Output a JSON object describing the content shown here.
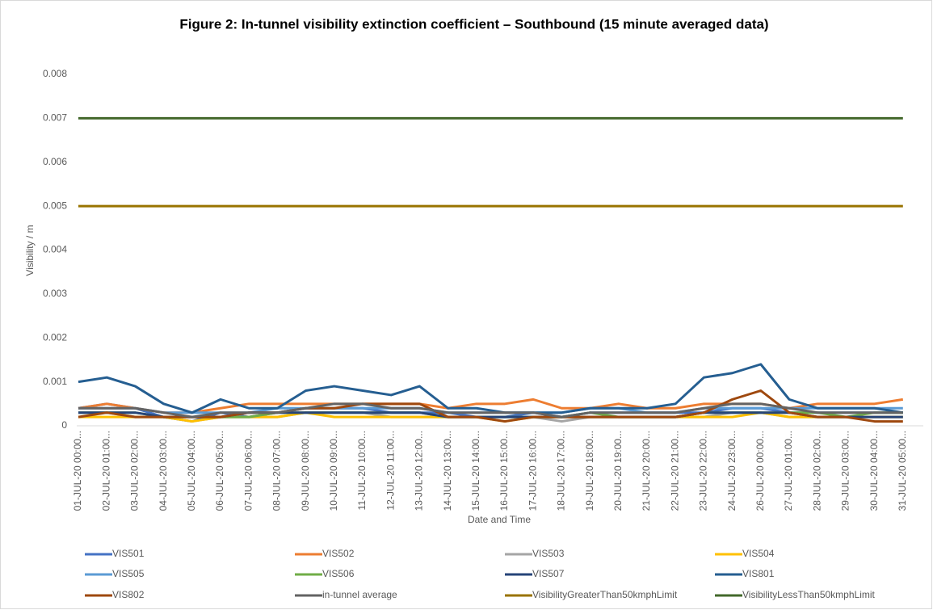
{
  "chart_data": {
    "type": "line",
    "title": "Figure 2: In-tunnel visibility extinction coefficient – Southbound (15 minute averaged data)",
    "x_label": "Date and Time",
    "y_label": "Visibility / m",
    "categories": [
      "01-JUL-20 00:00...",
      "02-JUL-20 01:00...",
      "03-JUL-20 02:00...",
      "04-JUL-20 03:00...",
      "05-JUL-20 04:00...",
      "06-JUL-20 05:00...",
      "07-JUL-20 06:00...",
      "08-JUL-20 07:00...",
      "09-JUL-20 08:00...",
      "10-JUL-20 09:00...",
      "11-JUL-20 10:00...",
      "12-JUL-20 11:00...",
      "13-JUL-20 12:00...",
      "14-JUL-20 13:00...",
      "15-JUL-20 14:00...",
      "16-JUL-20 15:00...",
      "17-JUL-20 16:00...",
      "18-JUL-20 17:00...",
      "19-JUL-20 18:00...",
      "20-JUL-20 19:00...",
      "21-JUL-20 20:00...",
      "22-JUL-20 21:00...",
      "23-JUL-20 22:00...",
      "24-JUL-20 23:00...",
      "26-JUL-20 00:00...",
      "27-JUL-20 01:00...",
      "28-JUL-20 02:00...",
      "29-JUL-20 03:00...",
      "30-JUL-20 04:00...",
      "31-JUL-20 05:00..."
    ],
    "ylim": [
      0,
      0.008
    ],
    "yticks": [
      0,
      0.001,
      0.002,
      0.003,
      0.004,
      0.005,
      0.006,
      0.007,
      0.008
    ],
    "series": [
      {
        "name": "VIS501",
        "color": "#4472c4",
        "values": [
          0.0004,
          0.0005,
          0.0004,
          0.0002,
          0.0001,
          0.0003,
          0.0002,
          0.0003,
          0.0004,
          0.0004,
          0.0004,
          0.0003,
          0.0003,
          0.0003,
          0.0002,
          0.0002,
          0.0003,
          0.0002,
          0.0003,
          0.0003,
          0.0003,
          0.0003,
          0.0003,
          0.0004,
          0.0004,
          0.0003,
          0.0003,
          0.0003,
          0.0003,
          0.0003
        ]
      },
      {
        "name": "VIS502",
        "color": "#ed7d31",
        "values": [
          0.0004,
          0.0005,
          0.0004,
          0.0003,
          0.0003,
          0.0004,
          0.0005,
          0.0005,
          0.0005,
          0.0005,
          0.0005,
          0.0005,
          0.0005,
          0.0004,
          0.0005,
          0.0005,
          0.0006,
          0.0004,
          0.0004,
          0.0005,
          0.0004,
          0.0004,
          0.0005,
          0.0005,
          0.0005,
          0.0004,
          0.0005,
          0.0005,
          0.0005,
          0.0006
        ]
      },
      {
        "name": "VIS503",
        "color": "#a5a5a5",
        "values": [
          0.0003,
          0.0003,
          0.0002,
          0.0002,
          0.0001,
          0.0002,
          0.0002,
          0.0002,
          0.0003,
          0.0003,
          0.0003,
          0.0002,
          0.0002,
          0.0002,
          0.0002,
          0.0002,
          0.0002,
          0.0001,
          0.0002,
          0.0002,
          0.0002,
          0.0002,
          0.0002,
          0.0003,
          0.0003,
          0.0002,
          0.0002,
          0.0002,
          0.0002,
          0.0002
        ]
      },
      {
        "name": "VIS504",
        "color": "#ffc000",
        "values": [
          0.0002,
          0.0002,
          0.0002,
          0.0002,
          0.0001,
          0.0002,
          0.0002,
          0.0002,
          0.0003,
          0.0002,
          0.0002,
          0.0002,
          0.0002,
          0.0002,
          0.0002,
          0.0001,
          0.0002,
          0.0002,
          0.0002,
          0.0002,
          0.0002,
          0.0002,
          0.0002,
          0.0002,
          0.0003,
          0.0002,
          0.0002,
          0.0002,
          0.0002,
          0.0002
        ]
      },
      {
        "name": "VIS505",
        "color": "#5b9bd5",
        "values": [
          0.0004,
          0.0004,
          0.0004,
          0.0003,
          0.0003,
          0.0003,
          0.0003,
          0.0004,
          0.0004,
          0.0004,
          0.0004,
          0.0004,
          0.0004,
          0.0003,
          0.0003,
          0.0003,
          0.0003,
          0.0003,
          0.0004,
          0.0004,
          0.0003,
          0.0003,
          0.0004,
          0.0004,
          0.0004,
          0.0004,
          0.0004,
          0.0004,
          0.0004,
          0.0004
        ]
      },
      {
        "name": "VIS506",
        "color": "#70ad47",
        "values": [
          0.0003,
          0.0003,
          0.0003,
          0.0002,
          0.0002,
          0.0002,
          0.0002,
          0.0003,
          0.0003,
          0.0003,
          0.0003,
          0.0003,
          0.0003,
          0.0002,
          0.0002,
          0.0002,
          0.0002,
          0.0002,
          0.0003,
          0.0002,
          0.0002,
          0.0002,
          0.0003,
          0.0003,
          0.0003,
          0.0003,
          0.0003,
          0.0002,
          0.0003,
          0.0003
        ]
      },
      {
        "name": "VIS507",
        "color": "#264478",
        "values": [
          0.0003,
          0.0003,
          0.0003,
          0.0002,
          0.0002,
          0.0002,
          0.0003,
          0.0003,
          0.0003,
          0.0003,
          0.0003,
          0.0003,
          0.0003,
          0.0002,
          0.0002,
          0.0002,
          0.0002,
          0.0002,
          0.0002,
          0.0002,
          0.0002,
          0.0002,
          0.0003,
          0.0003,
          0.0003,
          0.0003,
          0.0002,
          0.0002,
          0.0002,
          0.0002
        ]
      },
      {
        "name": "VIS801",
        "color": "#255e91",
        "values": [
          0.001,
          0.0011,
          0.0009,
          0.0005,
          0.0003,
          0.0006,
          0.0004,
          0.0004,
          0.0008,
          0.0009,
          0.0008,
          0.0007,
          0.0009,
          0.0004,
          0.0004,
          0.0003,
          0.0003,
          0.0003,
          0.0004,
          0.0004,
          0.0004,
          0.0005,
          0.0011,
          0.0012,
          0.0014,
          0.0006,
          0.0004,
          0.0004,
          0.0004,
          0.0003
        ]
      },
      {
        "name": "VIS802",
        "color": "#9e480e",
        "values": [
          0.0002,
          0.0003,
          0.0002,
          0.0002,
          0.0002,
          0.0002,
          0.0003,
          0.0003,
          0.0004,
          0.0004,
          0.0005,
          0.0005,
          0.0005,
          0.0002,
          0.0002,
          0.0001,
          0.0002,
          0.0002,
          0.0002,
          0.0002,
          0.0002,
          0.0002,
          0.0003,
          0.0006,
          0.0008,
          0.0003,
          0.0002,
          0.0002,
          0.0001,
          0.0001
        ]
      },
      {
        "name": "in-tunnel average",
        "color": "#636363",
        "values": [
          0.0004,
          0.0004,
          0.0004,
          0.0003,
          0.0002,
          0.0003,
          0.0003,
          0.0003,
          0.0004,
          0.0005,
          0.0005,
          0.0004,
          0.0004,
          0.0003,
          0.0003,
          0.0003,
          0.0003,
          0.0002,
          0.0003,
          0.0003,
          0.0003,
          0.0003,
          0.0004,
          0.0005,
          0.0005,
          0.0004,
          0.0003,
          0.0003,
          0.0003,
          0.0003
        ]
      },
      {
        "name": "VisibilityGreaterThan50kmphLimit",
        "color": "#997300",
        "values": [
          0.005,
          0.005,
          0.005,
          0.005,
          0.005,
          0.005,
          0.005,
          0.005,
          0.005,
          0.005,
          0.005,
          0.005,
          0.005,
          0.005,
          0.005,
          0.005,
          0.005,
          0.005,
          0.005,
          0.005,
          0.005,
          0.005,
          0.005,
          0.005,
          0.005,
          0.005,
          0.005,
          0.005,
          0.005,
          0.005
        ]
      },
      {
        "name": "VisibilityLessThan50kmphLimit",
        "color": "#43682b",
        "values": [
          0.007,
          0.007,
          0.007,
          0.007,
          0.007,
          0.007,
          0.007,
          0.007,
          0.007,
          0.007,
          0.007,
          0.007,
          0.007,
          0.007,
          0.007,
          0.007,
          0.007,
          0.007,
          0.007,
          0.007,
          0.007,
          0.007,
          0.007,
          0.007,
          0.007,
          0.007,
          0.007,
          0.007,
          0.007,
          0.007
        ]
      }
    ]
  }
}
